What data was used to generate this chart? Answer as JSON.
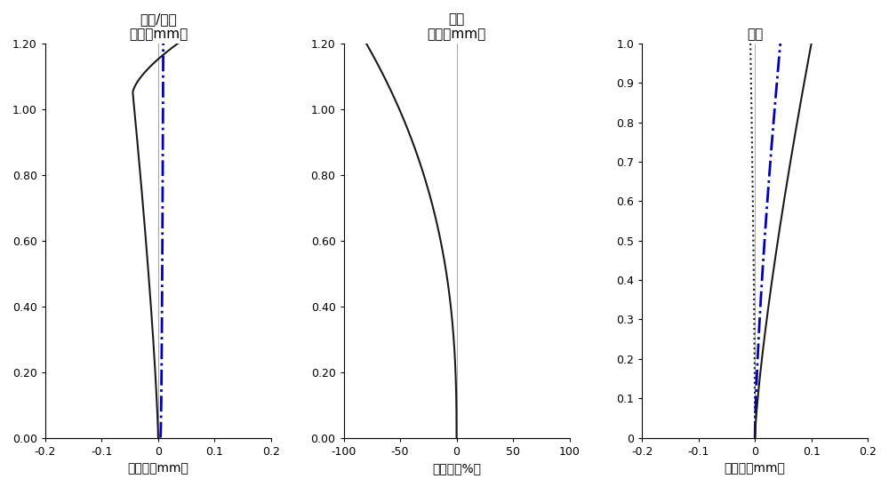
{
  "plot1_title": "场曲/像散",
  "plot1_ylabel": "像高（mm）",
  "plot1_xlabel": "离焦量（mm）",
  "plot1_ylim": [
    0.0,
    1.2
  ],
  "plot1_xlim": [
    -0.2,
    0.2
  ],
  "plot1_yticks": [
    0.0,
    0.2,
    0.4,
    0.6,
    0.8,
    1.0,
    1.2
  ],
  "plot1_xticks": [
    -0.2,
    -0.1,
    0,
    0.1,
    0.2
  ],
  "plot2_title": "番变",
  "plot2_ylabel": "像高（mm）",
  "plot2_xlabel": "番变量（%）",
  "plot2_ylim": [
    0.0,
    1.2
  ],
  "plot2_xlim": [
    -100,
    100
  ],
  "plot2_yticks": [
    0.0,
    0.2,
    0.4,
    0.6,
    0.8,
    1.0,
    1.2
  ],
  "plot2_xticks": [
    -100,
    -50,
    0,
    50,
    100
  ],
  "plot3_title": "球差",
  "plot3_xlabel": "离焦量（mm）",
  "plot3_ylim": [
    0.0,
    1.0
  ],
  "plot3_xlim": [
    -0.2,
    0.2
  ],
  "plot3_yticks": [
    0,
    0.1,
    0.2,
    0.3,
    0.4,
    0.5,
    0.6,
    0.7,
    0.8,
    0.9,
    1.0
  ],
  "plot3_xticks": [
    -0.2,
    -0.1,
    0,
    0.1,
    0.2
  ],
  "black_color": "#1a1a1a",
  "blue_color": "#0000bb",
  "bg_color": "#ffffff"
}
